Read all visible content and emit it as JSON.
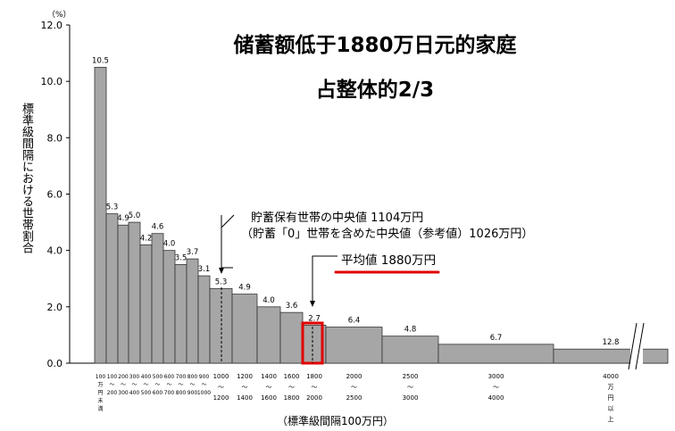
{
  "headline": {
    "line1": "储蓄额低于1880万日元的家庭",
    "line2": "占整体的2/3"
  },
  "annotations": {
    "median_line1": "貯蓄保有世帯の中央値 1104万円",
    "median_line2": "（貯蓄「0」世帯を含めた中央値（参考値）1026万円）",
    "mean": "平均値  1880万円"
  },
  "colors": {
    "bar_fill": "#a6a6a6",
    "bar_stroke": "#333333",
    "highlight_box": "#e00000",
    "underline": "#e00000"
  },
  "chart_data": {
    "type": "bar",
    "title": "",
    "ylabel": "標準級間隔における世帯割合",
    "xlabel": "（標準級間隔100万円）",
    "y_unit": "（%）",
    "ylim": [
      0,
      12
    ],
    "yticks": [
      "0.0",
      "2.0",
      "4.0",
      "6.0",
      "8.0",
      "10.0",
      "12.0"
    ],
    "bin_edges_10k_yen": [
      0,
      100,
      200,
      300,
      400,
      500,
      600,
      700,
      800,
      900,
      1000,
      1200,
      1400,
      1600,
      1800,
      2000,
      2500,
      3000,
      4000
    ],
    "values": [
      10.5,
      5.3,
      4.9,
      5.0,
      4.2,
      4.6,
      4.0,
      3.5,
      3.7,
      3.1,
      5.3,
      4.9,
      4.0,
      3.6,
      2.7,
      6.4,
      4.8,
      6.7,
      12.8
    ],
    "value_labels": [
      "10.5",
      "5.3",
      "4.9",
      "5.0",
      "4.2",
      "4.6",
      "4.0",
      "3.5",
      "3.7",
      "3.1",
      "5.3",
      "4.9",
      "4.0",
      "3.6",
      "2.7",
      "6.4",
      "4.8",
      "6.7",
      "12.8"
    ],
    "bar_heights": [
      10.5,
      5.3,
      4.9,
      5.0,
      4.2,
      4.6,
      4.0,
      3.5,
      3.7,
      3.1,
      2.65,
      2.45,
      2.0,
      1.8,
      1.35,
      1.28,
      0.96,
      0.67,
      0.5
    ],
    "x_tick_labels": [
      [
        "100",
        "万",
        "円",
        "未",
        "満"
      ],
      [
        "100",
        "～",
        "200"
      ],
      [
        "200",
        "～",
        "300"
      ],
      [
        "300",
        "～",
        "400"
      ],
      [
        "400",
        "～",
        "500"
      ],
      [
        "500",
        "～",
        "600"
      ],
      [
        "600",
        "～",
        "700"
      ],
      [
        "700",
        "～",
        "800"
      ],
      [
        "800",
        "～",
        "900"
      ],
      [
        "900",
        "～",
        "1000"
      ],
      [
        "1000",
        "～",
        "1200"
      ],
      [
        "1200",
        "～",
        "1400"
      ],
      [
        "1400",
        "～",
        "1600"
      ],
      [
        "1600",
        "～",
        "1800"
      ],
      [
        "1800",
        "～",
        "2000"
      ],
      [
        "2000",
        "～",
        "2500"
      ],
      [
        "2500",
        "～",
        "3000"
      ],
      [
        "3000",
        "～",
        "4000"
      ],
      [
        "4000",
        "万",
        "円",
        "以",
        "上"
      ]
    ],
    "median_10k_yen": 1104,
    "mean_10k_yen": 1880,
    "grid": false
  }
}
